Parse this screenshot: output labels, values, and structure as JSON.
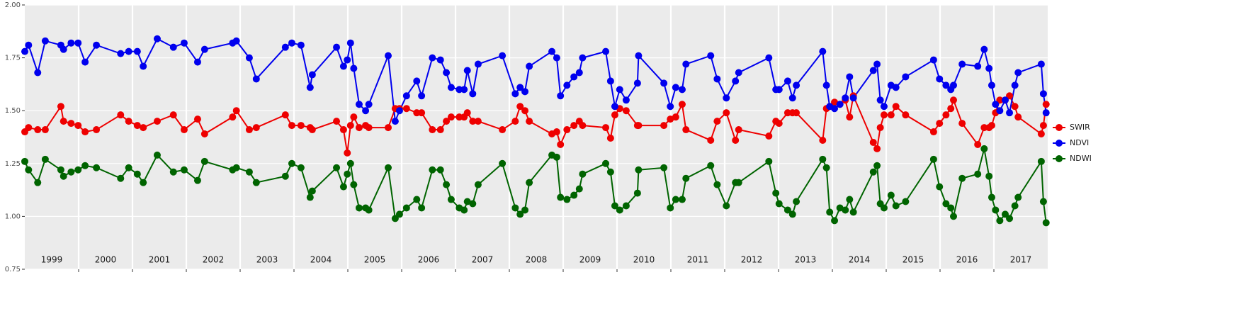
{
  "chart_data": {
    "type": "line",
    "x": [
      1999.0,
      1999.07,
      1999.24,
      1999.38,
      1999.67,
      1999.72,
      1999.86,
      1999.99,
      2000.12,
      2000.33,
      2000.78,
      2000.93,
      2001.09,
      2001.2,
      2001.46,
      2001.76,
      2001.96,
      2002.21,
      2002.34,
      2002.86,
      2002.93,
      2003.17,
      2003.3,
      2003.84,
      2003.96,
      2004.13,
      2004.3,
      2004.34,
      2004.79,
      2004.92,
      2004.99,
      2005.05,
      2005.11,
      2005.21,
      2005.33,
      2005.39,
      2005.75,
      2005.88,
      2005.96,
      2006.09,
      2006.28,
      2006.37,
      2006.57,
      2006.72,
      2006.83,
      2006.92,
      2007.07,
      2007.16,
      2007.22,
      2007.32,
      2007.42,
      2007.87,
      2008.11,
      2008.2,
      2008.29,
      2008.37,
      2008.79,
      2008.88,
      2008.95,
      2009.07,
      2009.2,
      2009.3,
      2009.36,
      2009.79,
      2009.88,
      2009.96,
      2010.05,
      2010.17,
      2010.38,
      2010.4,
      2010.87,
      2010.99,
      2011.09,
      2011.21,
      2011.28,
      2011.74,
      2011.86,
      2012.03,
      2012.2,
      2012.26,
      2012.82,
      2012.95,
      2013.01,
      2013.17,
      2013.26,
      2013.33,
      2013.82,
      2013.89,
      2013.95,
      2014.04,
      2014.14,
      2014.24,
      2014.32,
      2014.39,
      2014.76,
      2014.83,
      2014.89,
      2014.96,
      2015.09,
      2015.18,
      2015.36,
      2015.88,
      2015.99,
      2016.11,
      2016.2,
      2016.25,
      2016.41,
      2016.7,
      2016.82,
      2016.91,
      2016.96,
      2017.03,
      2017.11,
      2017.21,
      2017.29,
      2017.39,
      2017.45,
      2017.88,
      2017.92,
      2017.97
    ],
    "series": [
      {
        "name": "SWIR",
        "color": "#ee0000",
        "values": [
          1.4,
          1.42,
          1.41,
          1.41,
          1.52,
          1.45,
          1.44,
          1.43,
          1.4,
          1.41,
          1.48,
          1.45,
          1.43,
          1.42,
          1.45,
          1.48,
          1.41,
          1.46,
          1.39,
          1.47,
          1.5,
          1.41,
          1.42,
          1.48,
          1.43,
          1.43,
          1.42,
          1.41,
          1.45,
          1.41,
          1.3,
          1.43,
          1.47,
          1.42,
          1.43,
          1.42,
          1.42,
          1.51,
          1.51,
          1.51,
          1.49,
          1.49,
          1.41,
          1.41,
          1.45,
          1.47,
          1.47,
          1.47,
          1.49,
          1.45,
          1.45,
          1.41,
          1.45,
          1.52,
          1.5,
          1.45,
          1.39,
          1.4,
          1.34,
          1.41,
          1.43,
          1.45,
          1.43,
          1.42,
          1.37,
          1.48,
          1.51,
          1.5,
          1.43,
          1.43,
          1.43,
          1.46,
          1.47,
          1.53,
          1.41,
          1.36,
          1.45,
          1.49,
          1.36,
          1.41,
          1.38,
          1.45,
          1.44,
          1.49,
          1.49,
          1.49,
          1.36,
          1.51,
          1.52,
          1.54,
          1.53,
          1.55,
          1.47,
          1.57,
          1.35,
          1.32,
          1.42,
          1.48,
          1.48,
          1.52,
          1.48,
          1.4,
          1.44,
          1.48,
          1.51,
          1.55,
          1.44,
          1.34,
          1.42,
          1.42,
          1.43,
          1.49,
          1.55,
          1.55,
          1.57,
          1.52,
          1.47,
          1.39,
          1.43,
          1.53
        ]
      },
      {
        "name": "NDVI",
        "color": "#0000ee",
        "values": [
          1.78,
          1.81,
          1.68,
          1.83,
          1.81,
          1.79,
          1.82,
          1.82,
          1.73,
          1.81,
          1.77,
          1.78,
          1.78,
          1.71,
          1.84,
          1.8,
          1.82,
          1.73,
          1.79,
          1.82,
          1.83,
          1.75,
          1.65,
          1.8,
          1.82,
          1.81,
          1.61,
          1.67,
          1.8,
          1.71,
          1.74,
          1.82,
          1.7,
          1.53,
          1.5,
          1.53,
          1.76,
          1.45,
          1.5,
          1.57,
          1.64,
          1.57,
          1.75,
          1.74,
          1.68,
          1.61,
          1.6,
          1.6,
          1.69,
          1.58,
          1.72,
          1.76,
          1.58,
          1.61,
          1.59,
          1.71,
          1.78,
          1.75,
          1.57,
          1.62,
          1.66,
          1.68,
          1.75,
          1.78,
          1.64,
          1.52,
          1.6,
          1.55,
          1.63,
          1.76,
          1.63,
          1.52,
          1.61,
          1.6,
          1.72,
          1.76,
          1.65,
          1.56,
          1.64,
          1.68,
          1.75,
          1.6,
          1.6,
          1.64,
          1.56,
          1.62,
          1.78,
          1.62,
          1.52,
          1.51,
          1.53,
          1.56,
          1.66,
          1.56,
          1.69,
          1.72,
          1.55,
          1.52,
          1.62,
          1.61,
          1.66,
          1.74,
          1.65,
          1.62,
          1.6,
          1.62,
          1.72,
          1.71,
          1.79,
          1.7,
          1.62,
          1.53,
          1.5,
          1.55,
          1.49,
          1.62,
          1.68,
          1.72,
          1.58,
          1.49
        ]
      },
      {
        "name": "NDWI",
        "color": "#006400",
        "values": [
          1.26,
          1.22,
          1.16,
          1.27,
          1.22,
          1.19,
          1.21,
          1.22,
          1.24,
          1.23,
          1.18,
          1.23,
          1.2,
          1.16,
          1.29,
          1.21,
          1.22,
          1.17,
          1.26,
          1.22,
          1.23,
          1.21,
          1.16,
          1.19,
          1.25,
          1.23,
          1.09,
          1.12,
          1.23,
          1.14,
          1.2,
          1.25,
          1.15,
          1.04,
          1.04,
          1.03,
          1.23,
          0.99,
          1.01,
          1.04,
          1.08,
          1.04,
          1.22,
          1.22,
          1.15,
          1.08,
          1.04,
          1.03,
          1.07,
          1.06,
          1.15,
          1.25,
          1.04,
          1.01,
          1.03,
          1.16,
          1.29,
          1.28,
          1.09,
          1.08,
          1.1,
          1.13,
          1.2,
          1.25,
          1.21,
          1.05,
          1.03,
          1.05,
          1.11,
          1.22,
          1.23,
          1.04,
          1.08,
          1.08,
          1.18,
          1.24,
          1.15,
          1.05,
          1.16,
          1.16,
          1.26,
          1.11,
          1.06,
          1.03,
          1.01,
          1.07,
          1.27,
          1.23,
          1.02,
          0.98,
          1.04,
          1.03,
          1.08,
          1.02,
          1.21,
          1.24,
          1.06,
          1.04,
          1.1,
          1.05,
          1.07,
          1.27,
          1.14,
          1.06,
          1.04,
          1.0,
          1.18,
          1.2,
          1.32,
          1.19,
          1.09,
          1.03,
          0.98,
          1.01,
          0.99,
          1.05,
          1.09,
          1.26,
          1.07,
          0.97
        ]
      }
    ],
    "xlim": [
      1999,
      2018
    ],
    "xticks": [
      2000,
      2001,
      2002,
      2003,
      2004,
      2005,
      2006,
      2007,
      2008,
      2009,
      2010,
      2011,
      2012,
      2013,
      2014,
      2015,
      2016,
      2017
    ],
    "year_labels": [
      "1999",
      "2000",
      "2001",
      "2002",
      "2003",
      "2004",
      "2005",
      "2006",
      "2007",
      "2008",
      "2009",
      "2010",
      "2011",
      "2012",
      "2013",
      "2014",
      "2015",
      "2016",
      "2017"
    ],
    "ylim": [
      0.75,
      2.0
    ],
    "yticks": [
      0.75,
      {
        "value": 1,
        "label": "1.00"
      },
      1.25,
      {
        "value": 1.5,
        "label": "1.50"
      },
      1.75,
      {
        "value": 2,
        "label": "2.00"
      }
    ],
    "grid": true
  }
}
